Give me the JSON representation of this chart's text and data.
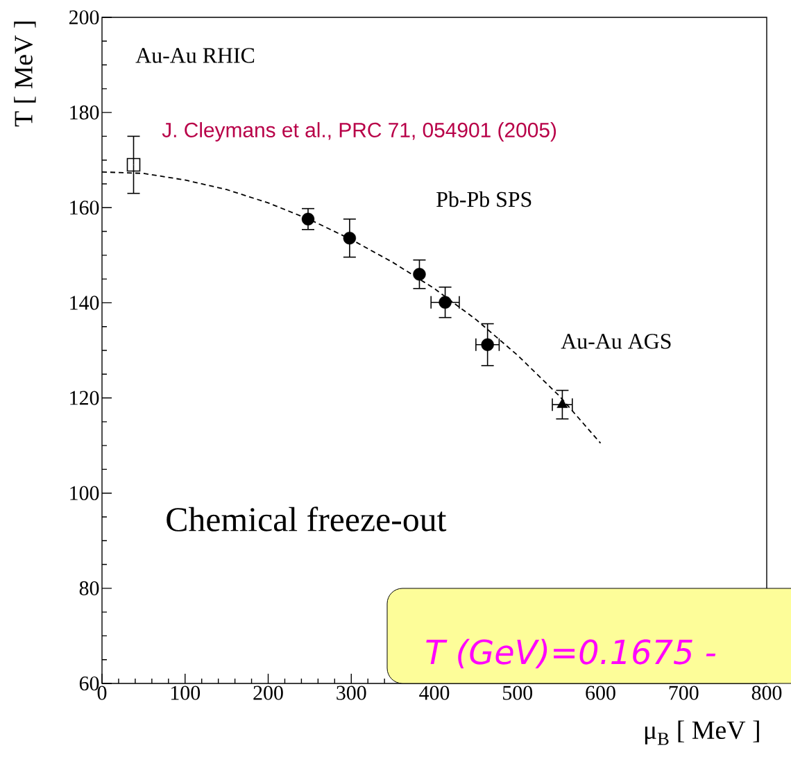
{
  "chart_data": {
    "type": "scatter",
    "xlabel": "μ$_{B}$ [ MeV ]",
    "ylabel": "T [ MeV ]",
    "xlim": [
      0,
      800
    ],
    "ylim": [
      60,
      200
    ],
    "xticks": [
      0,
      100,
      200,
      300,
      400,
      500,
      600,
      700,
      800
    ],
    "yticks": [
      60,
      80,
      100,
      120,
      140,
      160,
      180,
      200
    ],
    "series": [
      {
        "name": "Au-Au RHIC",
        "marker": "square",
        "color": "#000000",
        "x": [
          38
        ],
        "values": [
          169
        ],
        "errors": [
          6
        ],
        "xerrors": [
          null
        ]
      },
      {
        "name": "Pb-Pb SPS",
        "marker": "circle",
        "color": "#000000",
        "x": [
          248,
          298,
          382,
          413,
          464
        ],
        "values": [
          157.6,
          153.6,
          146,
          140.1,
          131.2
        ],
        "errors": [
          2.2,
          4,
          3,
          3.2,
          4.4
        ],
        "xerrors": [
          null,
          null,
          null,
          17,
          14
        ]
      },
      {
        "name": "Au-Au AGS",
        "marker": "triangle",
        "color": "#000000",
        "x": [
          554
        ],
        "values": [
          118.6
        ],
        "errors": [
          3
        ],
        "xerrors": [
          12
        ]
      },
      {
        "type": "line",
        "marker": "none",
        "line_style": "dashed",
        "color": "#000000",
        "x": [
          0,
          50,
          100,
          150,
          200,
          250,
          300,
          350,
          400,
          450,
          500,
          550,
          600
        ],
        "values": [
          167.5,
          167.2,
          165.8,
          163.8,
          161.0,
          157.5,
          153.3,
          148.5,
          143.0,
          136.5,
          129.0,
          120.5,
          110.5
        ]
      }
    ],
    "annotations": [
      "J. Cleymans et al., PRC 71, 054901 (2005)",
      "Chemical freeze-out",
      "T (GeV)=0.1675 -"
    ]
  }
}
